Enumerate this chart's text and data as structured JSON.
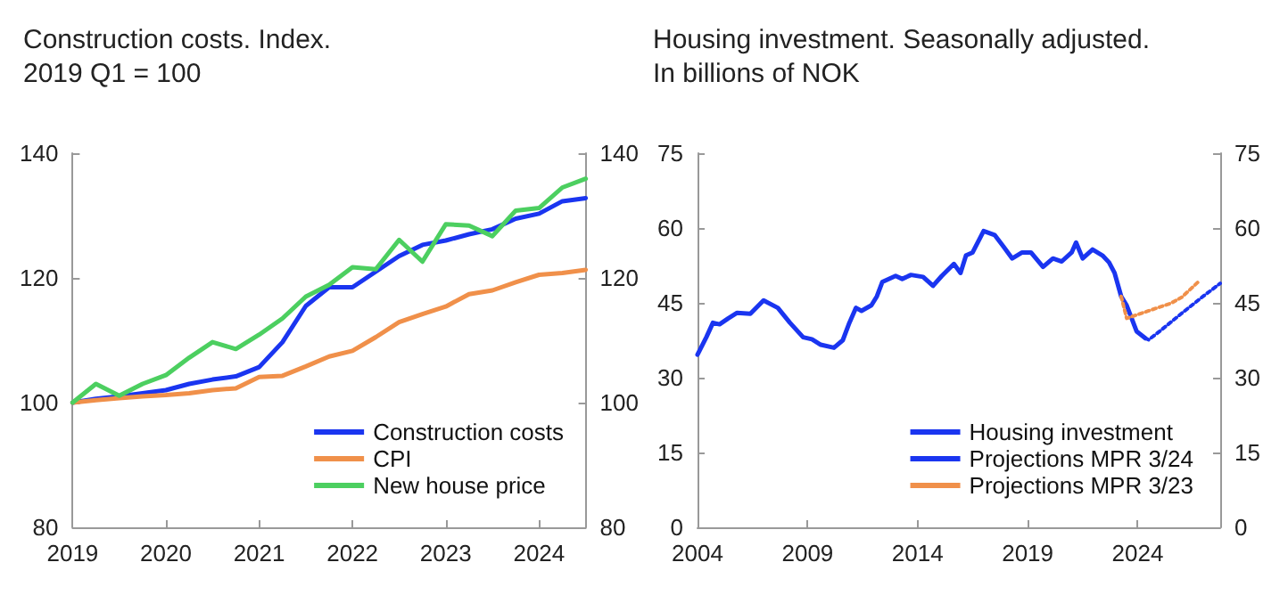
{
  "chart_data": [
    {
      "type": "line",
      "title": "Construction costs. Index.",
      "subtitle": "2019 Q1 = 100",
      "xlim": [
        2019,
        2024.5
      ],
      "xticks": [
        2019,
        2020,
        2021,
        2022,
        2023,
        2024
      ],
      "ylim": [
        80,
        140
      ],
      "yticks": [
        80,
        100,
        120,
        140
      ],
      "y2lim": [
        80,
        140
      ],
      "y2ticks": [
        80,
        100,
        120,
        140
      ],
      "grid": false,
      "legend": "bottom right",
      "marker": "none",
      "x": [
        2019,
        2019.25,
        2019.5,
        2019.75,
        2020,
        2020.25,
        2020.5,
        2020.75,
        2021,
        2021.25,
        2021.5,
        2021.75,
        2022,
        2022.25,
        2022.5,
        2022.75,
        2023,
        2023.25,
        2023.5,
        2023.75,
        2024,
        2024.25,
        2024.5
      ],
      "series": [
        {
          "name": "Construction costs",
          "color": "#1a35f0",
          "values": [
            100,
            100.6,
            101,
            101.5,
            102,
            103,
            103.7,
            104.2,
            105.7,
            109.7,
            115.5,
            118.5,
            118.5,
            121,
            123.5,
            125.3,
            126,
            127,
            127.8,
            129.5,
            130.3,
            132.3,
            132.8
          ]
        },
        {
          "name": "CPI",
          "color": "#f0904a",
          "values": [
            100,
            100.4,
            100.7,
            101,
            101.2,
            101.5,
            102,
            102.3,
            104.1,
            104.3,
            105.8,
            107.4,
            108.3,
            110.5,
            112.9,
            114.2,
            115.4,
            117.4,
            118,
            119.3,
            120.5,
            120.8,
            121.3
          ]
        },
        {
          "name": "New house price",
          "color": "#4ccf60",
          "values": [
            100,
            103,
            101.1,
            103,
            104.4,
            107.2,
            109.7,
            108.6,
            110.9,
            113.5,
            117,
            118.9,
            121.7,
            121.4,
            126.1,
            122.6,
            128.6,
            128.4,
            126.7,
            130.8,
            131.2,
            134.5,
            135.9
          ]
        }
      ]
    },
    {
      "type": "line",
      "title": "Housing investment. Seasonally adjusted.",
      "subtitle": "In billions of NOK",
      "xlim": [
        2004,
        2027.75
      ],
      "xticks": [
        2004,
        2009,
        2014,
        2019,
        2024
      ],
      "ylim": [
        0,
        75
      ],
      "yticks": [
        0,
        15,
        30,
        45,
        60,
        75
      ],
      "y2lim": [
        0,
        75
      ],
      "y2ticks": [
        0,
        15,
        30,
        45,
        60,
        75
      ],
      "grid": false,
      "legend": "bottom right",
      "marker": "none",
      "series": [
        {
          "name": "Housing investment",
          "color": "#1a35f0",
          "line_style": "solid",
          "x": [
            2004,
            2004.4,
            2004.7,
            2005,
            2005.4,
            2005.8,
            2006.4,
            2007,
            2007.65,
            2008.2,
            2008.8,
            2009.2,
            2009.6,
            2010.2,
            2010.6,
            2010.9,
            2011.2,
            2011.45,
            2011.9,
            2012.15,
            2012.4,
            2013,
            2013.3,
            2013.7,
            2014.25,
            2014.7,
            2015.1,
            2015.65,
            2015.95,
            2016.2,
            2016.5,
            2017,
            2017.5,
            2017.9,
            2018.3,
            2018.75,
            2019.15,
            2019.7,
            2020.15,
            2020.55,
            2021,
            2021.2,
            2021.5,
            2021.95,
            2022.4,
            2022.7,
            2022.95,
            2023.25,
            2023.5,
            2023.95,
            2024.35
          ],
          "values": [
            34.6,
            38.1,
            41,
            40.7,
            41.9,
            43,
            42.8,
            45.5,
            44,
            41,
            38.1,
            37.7,
            36.6,
            36,
            37.5,
            41,
            44,
            43.4,
            44.5,
            46.3,
            49.2,
            50.4,
            49.8,
            50.6,
            50.2,
            48.4,
            50.4,
            52.8,
            51,
            54.5,
            55.1,
            59.4,
            58.6,
            56.3,
            53.9,
            55.1,
            55.1,
            52.2,
            53.9,
            53.3,
            55.1,
            57.1,
            53.9,
            55.7,
            54.5,
            53.1,
            51,
            46.3,
            44.5,
            39.3,
            37.9
          ]
        },
        {
          "name": "Projections MPR 3/24",
          "color": "#1a35f0",
          "line_style": "dotted",
          "x": [
            2024.35,
            2024.5,
            2025,
            2026,
            2027,
            2027.75
          ],
          "values": [
            37.9,
            37.6,
            39.3,
            42.9,
            46.4,
            48.9
          ]
        },
        {
          "name": "Projections MPR 3/23",
          "color": "#f0904a",
          "line_style": "dotted",
          "x": [
            2023.25,
            2023.5,
            2024.5,
            2025.5,
            2026,
            2026.75
          ],
          "values": [
            46.3,
            41.9,
            43.4,
            44.9,
            46.1,
            49.2
          ]
        }
      ]
    }
  ]
}
